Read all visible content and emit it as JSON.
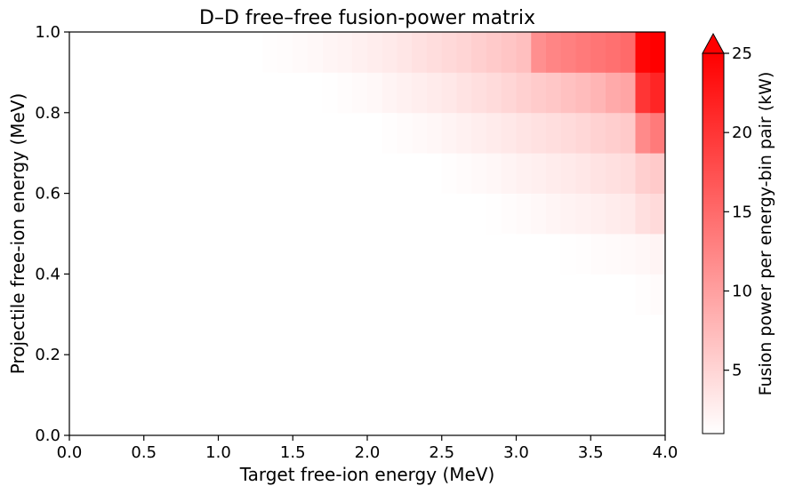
{
  "chart_data": {
    "type": "heatmap",
    "title": "D–D free–free fusion-power matrix",
    "xlabel": "Target free-ion energy (MeV)",
    "ylabel": "Projectile free-ion energy (MeV)",
    "xlim": [
      0.0,
      4.0
    ],
    "ylim": [
      0.0,
      1.0
    ],
    "xticks": [
      "0.0",
      "0.5",
      "1.0",
      "1.5",
      "2.0",
      "2.5",
      "3.0",
      "3.5",
      "4.0"
    ],
    "yticks": [
      "0.0",
      "0.2",
      "0.4",
      "0.6",
      "0.8",
      "1.0"
    ],
    "grid": false,
    "colorbar": {
      "label": "Fusion power per energy-bin pair (kW)",
      "range": [
        1,
        25
      ],
      "extend": "max",
      "ticks": [
        "5",
        "10",
        "15",
        "20",
        "25"
      ],
      "color_low": "#ffffff",
      "color_high": "#ff0000"
    },
    "x_bin_edges": [
      0.0,
      4.0
    ],
    "x_bins": 40,
    "y_bin_edges": [
      0.0,
      1.0
    ],
    "y_bins": 10,
    "rows": [
      {
        "y": [
          0.0,
          0.1
        ],
        "values": [
          0,
          0,
          0,
          0,
          0,
          0,
          0,
          0,
          0,
          0,
          0,
          0,
          0,
          0,
          0,
          0,
          0,
          0,
          0,
          0,
          0,
          0,
          0,
          0,
          0,
          0,
          0,
          0,
          0,
          0,
          0,
          0,
          0,
          0,
          0,
          0,
          0,
          0,
          0,
          0
        ]
      },
      {
        "y": [
          0.1,
          0.2
        ],
        "values": [
          0,
          0,
          0,
          0,
          0,
          0,
          0,
          0,
          0,
          0,
          0,
          0,
          0,
          0,
          0,
          0,
          0,
          0,
          0,
          0,
          0,
          0,
          0,
          0,
          0,
          0,
          0,
          0,
          0,
          0,
          0,
          0,
          0,
          0,
          0,
          0,
          0,
          0,
          0.3,
          0.4
        ]
      },
      {
        "y": [
          0.2,
          0.3
        ],
        "values": [
          0,
          0,
          0,
          0,
          0,
          0,
          0,
          0,
          0,
          0,
          0,
          0,
          0,
          0,
          0,
          0,
          0,
          0,
          0,
          0,
          0,
          0,
          0,
          0,
          0,
          0,
          0,
          0,
          0,
          0,
          0,
          0,
          0,
          0,
          0.2,
          0.3,
          0.4,
          0.5,
          0.6,
          0.8
        ]
      },
      {
        "y": [
          0.3,
          0.4
        ],
        "values": [
          0,
          0,
          0,
          0,
          0,
          0,
          0,
          0,
          0,
          0,
          0,
          0,
          0,
          0,
          0,
          0,
          0,
          0,
          0,
          0,
          0,
          0,
          0,
          0,
          0,
          0,
          0,
          0,
          0,
          0,
          0.2,
          0.4,
          0.5,
          0.6,
          0.7,
          0.8,
          0.9,
          1.0,
          1.2,
          1.4
        ]
      },
      {
        "y": [
          0.4,
          0.5
        ],
        "values": [
          0,
          0,
          0,
          0,
          0,
          0,
          0,
          0,
          0,
          0,
          0,
          0,
          0,
          0,
          0,
          0,
          0,
          0,
          0,
          0,
          0,
          0,
          0,
          0,
          0,
          0,
          0.2,
          0.4,
          0.5,
          0.6,
          0.7,
          0.8,
          1.0,
          1.1,
          1.2,
          1.4,
          1.5,
          1.6,
          1.8,
          2.0
        ]
      },
      {
        "y": [
          0.5,
          0.6
        ],
        "values": [
          0,
          0,
          0,
          0,
          0,
          0,
          0,
          0,
          0,
          0,
          0,
          0,
          0,
          0,
          0,
          0,
          0,
          0,
          0,
          0,
          0,
          0.2,
          0.3,
          0.4,
          0.5,
          0.6,
          0.8,
          1.0,
          1.1,
          1.3,
          1.5,
          1.7,
          1.9,
          2.1,
          2.3,
          2.5,
          2.8,
          3.0,
          4.0,
          4.5
        ]
      },
      {
        "y": [
          0.6,
          0.7
        ],
        "values": [
          0,
          0,
          0,
          0,
          0,
          0,
          0,
          0,
          0,
          0,
          0,
          0,
          0,
          0,
          0,
          0,
          0,
          0.2,
          0.3,
          0.4,
          0.5,
          0.6,
          0.7,
          0.9,
          1.0,
          1.2,
          1.4,
          1.6,
          1.8,
          2.0,
          2.3,
          2.5,
          2.8,
          3.0,
          3.3,
          3.6,
          3.9,
          4.2,
          5.5,
          6.0
        ]
      },
      {
        "y": [
          0.7,
          0.8
        ],
        "values": [
          0,
          0,
          0,
          0,
          0,
          0,
          0,
          0,
          0,
          0,
          0,
          0,
          0,
          0.2,
          0.3,
          0.4,
          0.5,
          0.6,
          0.7,
          0.8,
          1.0,
          1.2,
          1.4,
          1.6,
          1.8,
          2.0,
          2.3,
          2.6,
          2.9,
          3.2,
          3.5,
          3.8,
          4.1,
          4.4,
          4.8,
          5.2,
          5.6,
          6.0,
          12.0,
          13.5
        ]
      },
      {
        "y": [
          0.8,
          0.9
        ],
        "values": [
          0,
          0,
          0,
          0,
          0,
          0,
          0,
          0,
          0,
          0,
          0.3,
          0.4,
          0.5,
          0.6,
          0.7,
          0.8,
          1.0,
          1.1,
          1.3,
          1.5,
          1.7,
          2.0,
          2.3,
          2.6,
          2.9,
          3.2,
          3.6,
          4.0,
          4.4,
          4.9,
          5.4,
          5.9,
          6.3,
          6.8,
          7.3,
          8.0,
          9.0,
          9.5,
          20.0,
          21.5
        ]
      },
      {
        "y": [
          0.9,
          1.0
        ],
        "values": [
          0,
          0,
          0,
          0,
          0,
          0,
          0,
          0,
          0.2,
          0.3,
          0.6,
          0.8,
          1.0,
          1.2,
          1.3,
          1.5,
          1.7,
          1.9,
          2.1,
          2.4,
          2.7,
          3.0,
          3.4,
          3.8,
          4.2,
          4.6,
          5.0,
          5.5,
          6.0,
          6.5,
          7.0,
          11.5,
          12.5,
          13.0,
          13.5,
          14.0,
          14.5,
          15.0,
          24.5,
          25.5
        ]
      }
    ]
  }
}
